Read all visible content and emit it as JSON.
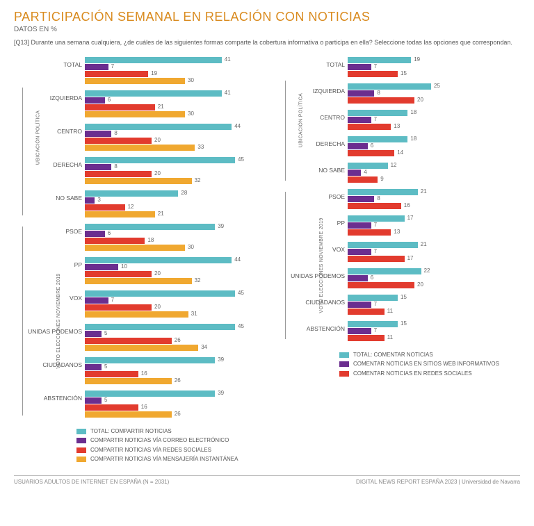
{
  "title": "PARTICIPACIÓN SEMANAL EN RELACIÓN CON NOTICIAS",
  "title_color": "#d98b1f",
  "subtitle": "DATOS EN %",
  "question": "[Q13] Durante una semana cualquiera, ¿de cuáles de las siguientes formas comparte la cobertura informativa o participa en ella? Seleccione todas las opciones que correspondan.",
  "colors": {
    "teal": "#5dbcc4",
    "purple": "#6b2e8f",
    "red": "#e23b2e",
    "amber": "#f0a830"
  },
  "left": {
    "max": 50,
    "series_colors": [
      "teal",
      "purple",
      "red",
      "amber"
    ],
    "sections": [
      {
        "label": "UBICACIÓN POLÍTICA",
        "show_line": true,
        "line_skip_first": true,
        "rows": [
          {
            "label": "TOTAL",
            "v": [
              41,
              7,
              19,
              30
            ]
          },
          {
            "label": "IZQUIERDA",
            "v": [
              41,
              6,
              21,
              30
            ]
          },
          {
            "label": "CENTRO",
            "v": [
              44,
              8,
              20,
              33
            ]
          },
          {
            "label": "DERECHA",
            "v": [
              45,
              8,
              20,
              32
            ]
          },
          {
            "label": "NO SABE",
            "v": [
              28,
              3,
              12,
              21
            ]
          }
        ]
      },
      {
        "label": "VOTO ELECCIONES NOVIEMBRE 2019",
        "show_line": true,
        "line_skip_first": false,
        "rows": [
          {
            "label": "PSOE",
            "v": [
              39,
              6,
              18,
              30
            ]
          },
          {
            "label": "PP",
            "v": [
              44,
              10,
              20,
              32
            ]
          },
          {
            "label": "VOX",
            "v": [
              45,
              7,
              20,
              31
            ]
          },
          {
            "label": "UNIDAS PODEMOS",
            "v": [
              45,
              5,
              26,
              34
            ]
          },
          {
            "label": "CIUDADANOS",
            "v": [
              39,
              5,
              16,
              26
            ]
          },
          {
            "label": "ABSTENCIÓN",
            "v": [
              39,
              5,
              16,
              26
            ]
          }
        ]
      }
    ],
    "legend": [
      {
        "c": "teal",
        "t": "TOTAL: COMPARTIR NOTICIAS"
      },
      {
        "c": "purple",
        "t": "COMPARTIR NOTICIAS VÍA CORREO ELECTRÓNICO"
      },
      {
        "c": "red",
        "t": "COMPARTIR NOTICIAS VÍA REDES SOCIALES"
      },
      {
        "c": "amber",
        "t": "COMPARTIR NOTICIAS VÍA MENSAJERÍA INSTANTÁNEA"
      }
    ]
  },
  "right": {
    "max": 50,
    "series_colors": [
      "teal",
      "purple",
      "red"
    ],
    "sections": [
      {
        "label": "UBICACIÓN POLÍTICA",
        "show_line": true,
        "line_skip_first": true,
        "rows": [
          {
            "label": "TOTAL",
            "v": [
              19,
              7,
              15
            ]
          },
          {
            "label": "IZQUIERDA",
            "v": [
              25,
              8,
              20
            ]
          },
          {
            "label": "CENTRO",
            "v": [
              18,
              7,
              13
            ]
          },
          {
            "label": "DERECHA",
            "v": [
              18,
              6,
              14
            ]
          },
          {
            "label": "NO SABE",
            "v": [
              12,
              4,
              9
            ]
          }
        ]
      },
      {
        "label": "VOTO ELECCIONES NOVIEMBRE 2019",
        "show_line": true,
        "line_skip_first": false,
        "rows": [
          {
            "label": "PSOE",
            "v": [
              21,
              8,
              16
            ]
          },
          {
            "label": "PP",
            "v": [
              17,
              7,
              13
            ]
          },
          {
            "label": "VOX",
            "v": [
              21,
              7,
              17
            ]
          },
          {
            "label": "UNIDAS PODEMOS",
            "v": [
              22,
              6,
              20
            ]
          },
          {
            "label": "CIUDADANOS",
            "v": [
              15,
              7,
              11
            ]
          },
          {
            "label": "ABSTENCIÓN",
            "v": [
              15,
              7,
              11
            ]
          }
        ]
      }
    ],
    "legend": [
      {
        "c": "teal",
        "t": "TOTAL: COMENTAR NOTICIAS"
      },
      {
        "c": "purple",
        "t": "COMENTAR NOTICIAS EN SITIOS WEB INFORMATIVOS"
      },
      {
        "c": "red",
        "t": "COMENTAR NOTICIAS EN REDES SOCIALES"
      }
    ]
  },
  "footer_left": "USUARIOS ADULTOS DE INTERNET EN ESPAÑA (N = 2031)",
  "footer_right": "DIGITAL NEWS REPORT ESPAÑA 2023 | Universidad de Navarra"
}
